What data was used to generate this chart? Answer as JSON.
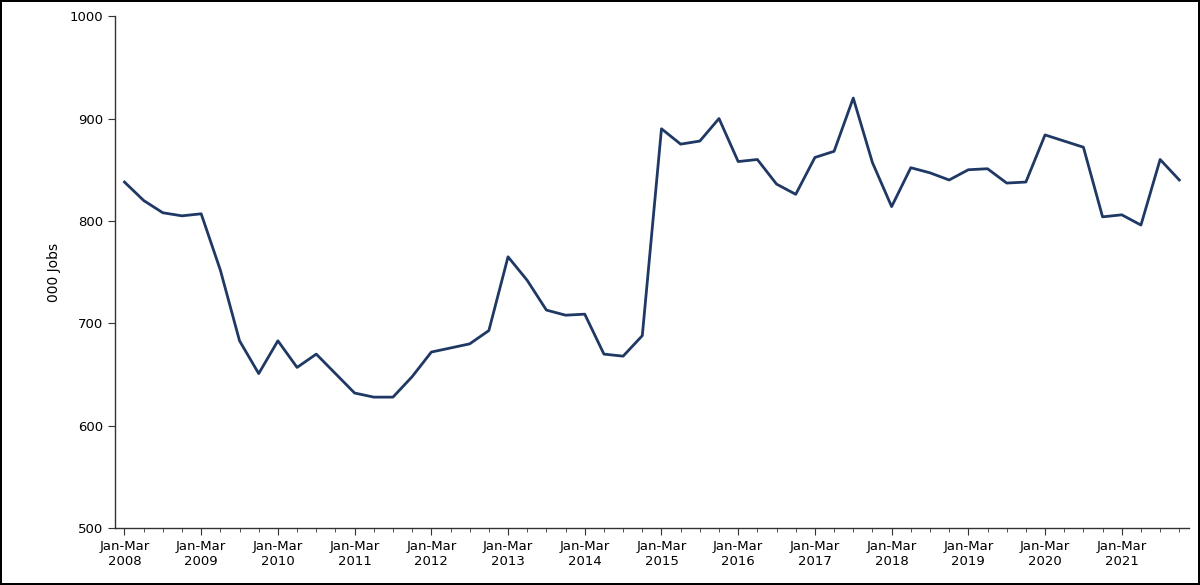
{
  "ylabel": "000 Jobs",
  "line_color": "#1f3864",
  "line_width": 2.0,
  "ylim": [
    500,
    1000
  ],
  "yticks": [
    500,
    600,
    700,
    800,
    900,
    1000
  ],
  "background_color": "#ffffff",
  "values": [
    838,
    820,
    808,
    805,
    807,
    752,
    683,
    651,
    683,
    657,
    670,
    651,
    632,
    628,
    628,
    648,
    672,
    676,
    680,
    693,
    765,
    742,
    713,
    708,
    709,
    670,
    668,
    688,
    890,
    875,
    878,
    900,
    858,
    860,
    836,
    826,
    862,
    868,
    920,
    857,
    814,
    852,
    847,
    840,
    850,
    851,
    837,
    838,
    884,
    878,
    872,
    804,
    806,
    796,
    860,
    840
  ],
  "x_labels": [
    "Jan-Mar\n2008",
    "Jan-Mar\n2009",
    "Jan-Mar\n2010",
    "Jan-Mar\n2011",
    "Jan-Mar\n2012",
    "Jan-Mar\n2013",
    "Jan-Mar\n2014",
    "Jan-Mar\n2015",
    "Jan-Mar\n2016",
    "Jan-Mar\n2017",
    "Jan-Mar\n2018",
    "Jan-Mar\n2019",
    "Jan-Mar\n2020",
    "Jan-Mar\n2021"
  ],
  "x_tick_positions": [
    0,
    4,
    8,
    12,
    16,
    20,
    24,
    28,
    32,
    36,
    40,
    44,
    48,
    52
  ],
  "spine_color": "#333333",
  "tick_color": "#333333",
  "tick_label_fontsize": 9.5,
  "ylabel_fontsize": 10,
  "border_color": "#000000"
}
